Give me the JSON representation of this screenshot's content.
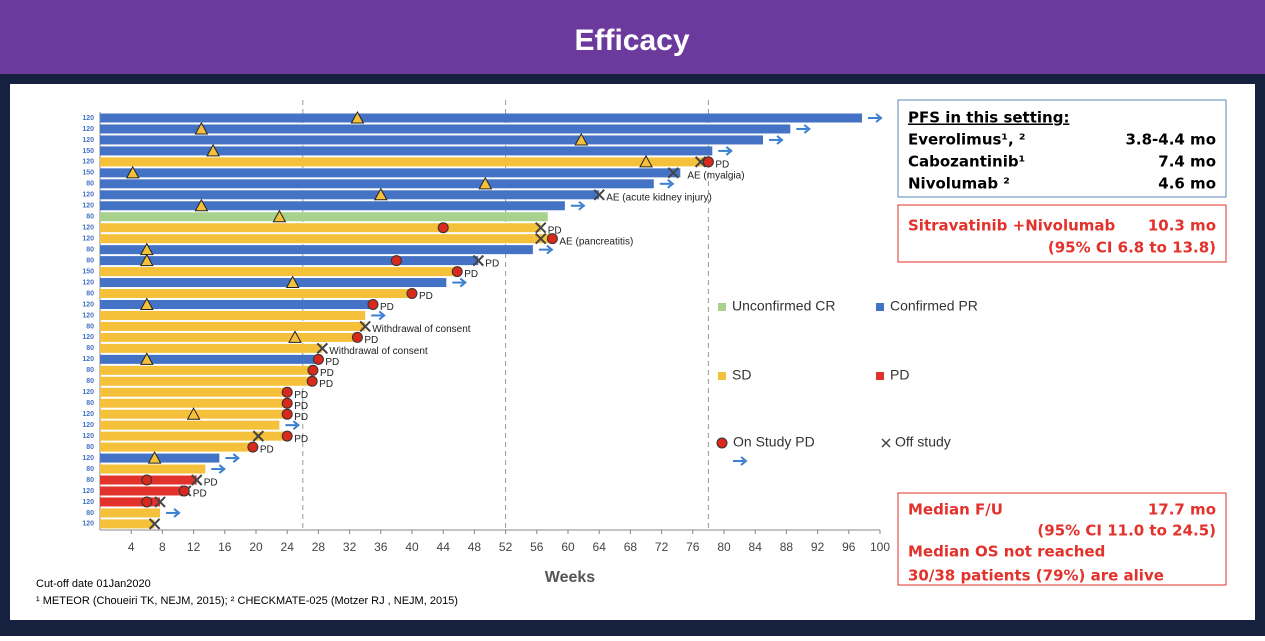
{
  "header": {
    "title": "Efficacy"
  },
  "chart_data": {
    "type": "swimmer",
    "xlabel": "Weeks",
    "xlim": [
      0,
      100
    ],
    "xticks": [
      4,
      8,
      12,
      16,
      20,
      24,
      28,
      32,
      36,
      40,
      44,
      48,
      52,
      56,
      60,
      64,
      68,
      72,
      76,
      80,
      84,
      88,
      92,
      96,
      100
    ],
    "reference_lines": [
      26,
      52,
      78
    ],
    "legend": [
      {
        "name": "Unconfirmed CR",
        "color": "#a9d18e"
      },
      {
        "name": "Confirmed PR",
        "color": "#4472c4"
      },
      {
        "name": "SD",
        "color": "#f5c03a"
      },
      {
        "name": "PD",
        "color": "#e3312b"
      }
    ],
    "markers": [
      {
        "name": "On Study PD",
        "color": "#d9281c"
      },
      {
        "name": "Off study",
        "color": "#444444"
      }
    ],
    "rows": {
      "dose": [
        120,
        120,
        120,
        150,
        120,
        150,
        80,
        120,
        120,
        80,
        120,
        120,
        80,
        80,
        150,
        120,
        80,
        120,
        120,
        80,
        120,
        80,
        120,
        80,
        80,
        120,
        80,
        120,
        120,
        120,
        80,
        120,
        80,
        80,
        120,
        120,
        80,
        120
      ],
      "weeks": [
        97.7,
        88.5,
        85,
        78.5,
        78,
        74.4,
        71,
        64,
        59.6,
        57.4,
        56.5,
        58,
        55.5,
        48.5,
        45.8,
        44.4,
        40,
        35,
        34,
        34,
        33,
        28.5,
        28,
        27.3,
        27.2,
        24,
        24,
        24,
        23,
        24,
        19.6,
        15.3,
        13.5,
        12.4,
        10.8,
        7.7,
        7.7,
        7
      ],
      "status": [
        1,
        1,
        1,
        1,
        2,
        1,
        1,
        1,
        1,
        0,
        2,
        2,
        1,
        1,
        2,
        1,
        2,
        1,
        2,
        2,
        2,
        2,
        1,
        2,
        2,
        2,
        2,
        2,
        2,
        2,
        2,
        1,
        2,
        3,
        3,
        3,
        2,
        2
      ],
      "response": [
        33,
        13,
        61.7,
        14.5,
        70,
        4.2,
        49.4,
        36,
        13,
        23,
        null,
        null,
        6,
        6,
        null,
        24.7,
        null,
        6,
        null,
        null,
        25,
        null,
        6,
        null,
        null,
        null,
        null,
        12,
        null,
        null,
        null,
        7,
        null,
        null,
        null,
        null,
        null,
        null
      ],
      "pd": [
        null,
        null,
        null,
        null,
        78,
        null,
        null,
        null,
        null,
        null,
        44,
        58,
        null,
        38,
        45.8,
        null,
        40,
        35,
        null,
        null,
        33,
        null,
        28,
        27.3,
        27.2,
        24,
        24,
        24,
        null,
        24,
        19.6,
        null,
        null,
        6,
        10.8,
        6,
        null,
        null
      ],
      "off": [
        null,
        null,
        null,
        null,
        77,
        73.5,
        null,
        64,
        null,
        null,
        56.5,
        56.5,
        null,
        48.5,
        null,
        null,
        null,
        null,
        null,
        34,
        null,
        28.5,
        null,
        null,
        null,
        null,
        null,
        null,
        null,
        20.3,
        null,
        null,
        null,
        12.4,
        11,
        7.7,
        null,
        7
      ],
      "ongoing": [
        true,
        true,
        true,
        true,
        false,
        false,
        true,
        false,
        true,
        false,
        false,
        false,
        true,
        false,
        false,
        true,
        false,
        false,
        true,
        false,
        false,
        false,
        false,
        false,
        false,
        false,
        false,
        false,
        true,
        false,
        false,
        true,
        true,
        false,
        false,
        false,
        true,
        false
      ],
      "notes": [
        null,
        null,
        null,
        null,
        "PD",
        "AE (myalgia)",
        null,
        "AE (acute kidney injury)",
        null,
        null,
        "PD",
        "AE (pancreatitis)",
        null,
        "PD",
        "PD",
        null,
        "PD",
        "PD",
        null,
        "Withdrawal of consent",
        "PD",
        "Withdrawal of consent",
        "PD",
        "PD",
        "PD",
        "PD",
        "PD",
        "PD",
        null,
        "PD",
        "PD",
        null,
        null,
        "PD",
        "PD",
        null,
        null,
        null
      ]
    }
  },
  "pfs": {
    "heading": "PFS in this setting:",
    "rows": [
      [
        "Everolimus¹, ²",
        "3.8-4.4 mo"
      ],
      [
        "Cabozantinib¹",
        "7.4 mo"
      ],
      [
        "Nivolumab ²",
        "4.6 mo"
      ]
    ]
  },
  "highlight": {
    "label": "Sitravatinib +Nivolumab",
    "value": "10.3 mo",
    "ci": "(95% CI 6.8 to 13.8)"
  },
  "followup": {
    "label": "Median F/U",
    "value": "17.7 mo",
    "ci": "(95% CI 11.0 to 24.5)",
    "os": "Median OS not reached",
    "alive": "30/38 patients (79%) are alive"
  },
  "footer": {
    "cutoff": "Cut-off date 01Jan2020",
    "refs": "¹ METEOR (Choueiri TK, NEJM, 2015); ² CHECKMATE-025 (Motzer RJ , NEJM, 2015)"
  }
}
